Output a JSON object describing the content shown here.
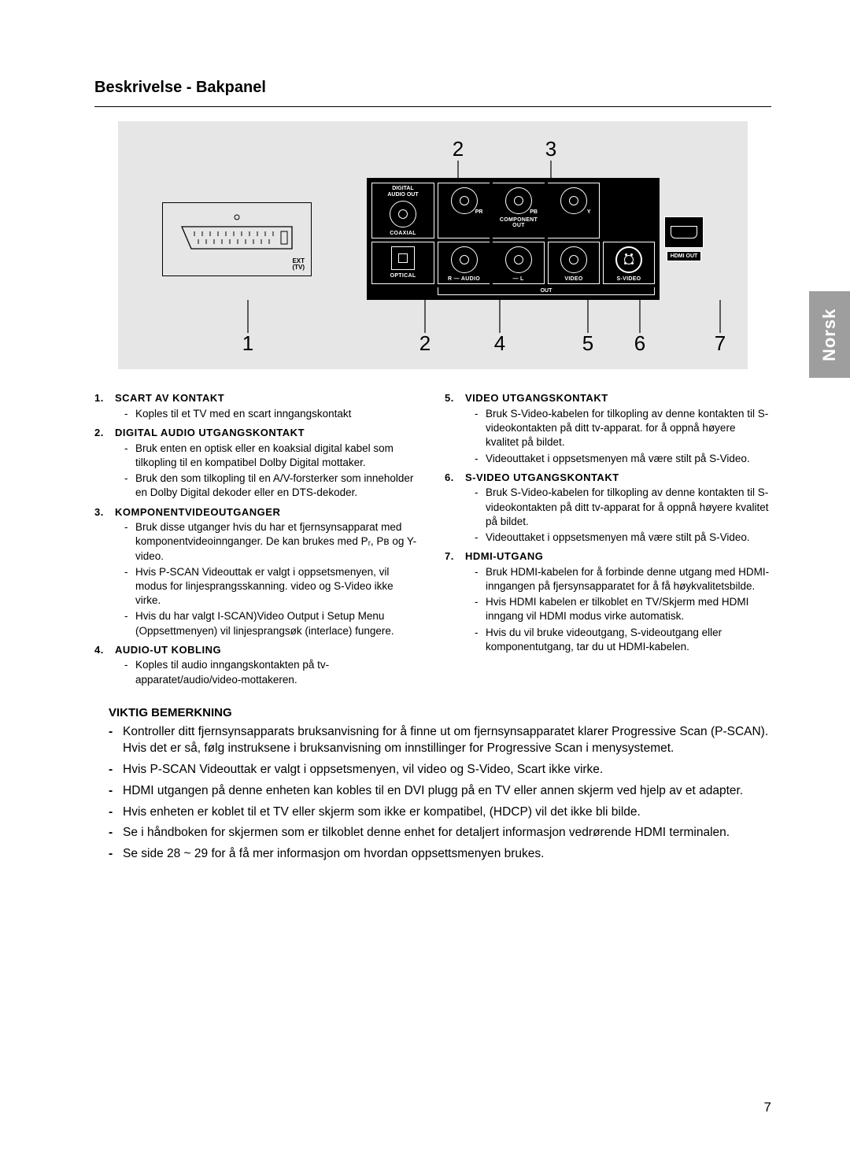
{
  "page": {
    "title": "Beskrivelse - Bakpanel",
    "side_tab": "Norsk",
    "page_number": "7"
  },
  "diagram": {
    "bg_color": "#e6e6e6",
    "callouts_top": [
      "2",
      "3"
    ],
    "callouts_bottom": [
      "1",
      "2",
      "4",
      "5",
      "6",
      "7"
    ],
    "scart": {
      "ext_label": "EXT\n(TV)"
    },
    "labels": {
      "digital_audio_out": "DIGITAL\nAUDIO OUT",
      "coaxial": "COAXIAL",
      "optical": "OPTICAL",
      "component_out": "COMPONENT OUT",
      "audio": "AUDIO",
      "out": "OUT",
      "video": "VIDEO",
      "svideo": "S-VIDEO",
      "hdmi_out": "HDMI OUT",
      "pr": "PR",
      "pb": "PB",
      "y": "Y",
      "r": "R",
      "l": "L"
    }
  },
  "sections": {
    "left": [
      {
        "num": "1.",
        "title": "SCART AV KONTAKT",
        "bullets": [
          "Koples til et TV med en scart inngangskontakt"
        ]
      },
      {
        "num": "2.",
        "title": "DIGITAL AUDIO UTGANGSKONTAKT",
        "bullets": [
          "Bruk enten en optisk eller en koaksial digital kabel som tilkopling til en kompatibel Dolby Digital mottaker.",
          "Bruk den som tilkopling til en A/V-forsterker som inneholder en Dolby Digital dekoder eller en DTS-dekoder."
        ]
      },
      {
        "num": "3.",
        "title": "KOMPONENTVIDEOUTGANGER",
        "bullets": [
          "Bruk disse utganger hvis du har et fjernsynsapparat med komponentvideoinnganger. De kan brukes med Pᵣ, Pʙ og Y-video.",
          "Hvis P-SCAN Videouttak er valgt i oppsetsmenyen, vil modus for linjesprangsskanning. video og S-Video ikke virke.",
          "Hvis du har valgt I-SCAN)Video Output i Setup Menu (Oppsettmenyen) vil linjesprangsøk (interlace) fungere."
        ]
      },
      {
        "num": "4.",
        "title": "AUDIO-UT KOBLING",
        "bullets": [
          "Koples til audio inngangskontakten på tv-apparatet/audio/video-mottakeren."
        ]
      }
    ],
    "right": [
      {
        "num": "5.",
        "title": "VIDEO UTGANGSKONTAKT",
        "bullets": [
          "Bruk S-Video-kabelen for tilkopling av denne kontakten til S-videokontakten på ditt tv-apparat. for å oppnå høyere kvalitet på bildet.",
          "Videouttaket i oppsetsmenyen må være stilt på S-Video."
        ]
      },
      {
        "num": "6.",
        "title": "S-VIDEO UTGANGSKONTAKT",
        "bullets": [
          "Bruk S-Video-kabelen for tilkopling av denne kontakten til S-videokontakten på ditt tv-apparat for å oppnå høyere kvalitet på bildet.",
          "Videouttaket i oppsetsmenyen må være stilt på S-Video."
        ]
      },
      {
        "num": "7.",
        "title": "HDMI-UTGANG",
        "bullets": [
          "Bruk HDMI-kabelen for å forbinde denne utgang med HDMI-inngangen på fjersynsapparatet for å få høykvalitetsbilde.",
          "Hvis HDMI kabelen er tilkoblet en TV/Skjerm med HDMI inngang vil HDMI modus virke automatisk.",
          "Hvis du vil bruke videoutgang, S-videoutgang eller komponentutgang, tar du ut HDMI-kabelen."
        ]
      }
    ]
  },
  "notes": {
    "heading": "VIKTIG BEMERKNING",
    "items": [
      "Kontroller ditt fjernsynsapparats bruksanvisning for å finne ut om fjernsynsapparatet klarer Progressive Scan (P-SCAN). Hvis det er så, følg instruksene i bruksanvisning om innstillinger for Progressive Scan i menysystemet.",
      "Hvis P-SCAN Videouttak er valgt i oppsetsmenyen, vil video og S-Video, Scart ikke virke.",
      "HDMI utgangen på denne enheten kan kobles til en DVI plugg på en TV eller annen skjerm ved hjelp av et adapter.",
      "Hvis enheten er koblet til et TV eller skjerm som ikke er kompatibel, (HDCP) vil det ikke bli bilde.",
      "Se i håndboken for skjermen som er tilkoblet denne enhet for detaljert informasjon vedrørende HDMI terminalen.",
      "Se side 28 ~ 29 for å få mer informasjon om hvordan oppsettsmenyen brukes."
    ]
  }
}
